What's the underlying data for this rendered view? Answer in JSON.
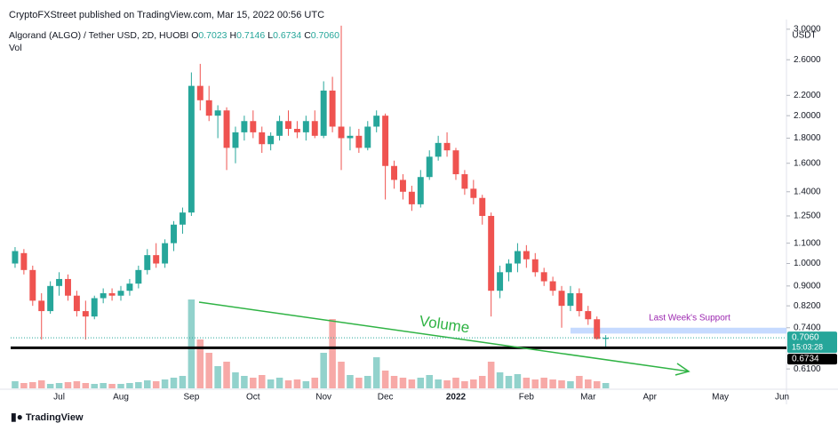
{
  "header": {
    "publish_note": "CryptoFXStreet published on TradingView.com, Mar 15, 2022 00:56 UTC",
    "symbol": "Algorand (ALGO) / Tether USD, 2D, HUOBI",
    "ohlc": [
      {
        "key": "O",
        "value": "0.7023"
      },
      {
        "key": "H",
        "value": "0.7146"
      },
      {
        "key": "L",
        "value": "0.6734"
      },
      {
        "key": "C",
        "value": "0.7060"
      }
    ],
    "vol_label": "Vol"
  },
  "footer": {
    "logo": "TradingView"
  },
  "chart_data": {
    "type": "candlestick",
    "log_scale": true,
    "currency": "USDT",
    "up_color": "#26a69a",
    "down_color": "#ef5350",
    "categories": [
      null,
      null,
      null,
      null,
      null,
      "Jul",
      null,
      null,
      null,
      null,
      null,
      null,
      "Aug",
      null,
      null,
      null,
      null,
      null,
      null,
      null,
      "Sep",
      null,
      null,
      null,
      null,
      null,
      null,
      "Oct",
      null,
      null,
      null,
      null,
      null,
      null,
      null,
      "Nov",
      null,
      null,
      null,
      null,
      null,
      null,
      "Dec",
      null,
      null,
      null,
      null,
      null,
      null,
      null,
      "2022",
      null,
      null,
      null,
      null,
      null,
      null,
      null,
      "Feb",
      null,
      null,
      null,
      null,
      null,
      null,
      "Mar",
      null,
      null,
      null,
      null,
      null,
      null,
      "Apr",
      null,
      null,
      null,
      null,
      null,
      null,
      null,
      "May",
      null,
      null,
      null,
      null,
      null,
      null,
      "Jun"
    ],
    "open": [
      1.0,
      1.05,
      0.97,
      0.84,
      0.8,
      0.9,
      0.93,
      0.86,
      0.8,
      0.78,
      0.85,
      0.87,
      0.86,
      0.88,
      0.91,
      0.97,
      1.04,
      1.0,
      1.1,
      1.2,
      1.27,
      2.3,
      2.15,
      2.0,
      2.05,
      1.72,
      1.85,
      1.95,
      1.85,
      1.75,
      1.82,
      1.95,
      1.88,
      1.85,
      1.95,
      1.82,
      2.25,
      1.9,
      1.8,
      1.82,
      1.72,
      1.9,
      2.0,
      1.58,
      1.48,
      1.4,
      1.32,
      1.5,
      1.65,
      1.76,
      1.7,
      1.52,
      1.42,
      1.36,
      1.25,
      0.88,
      0.96,
      1.0,
      1.06,
      1.02,
      0.96,
      0.92,
      0.88,
      0.82,
      0.87,
      0.8,
      0.77,
      0.7023,
      null,
      null,
      null,
      null,
      null,
      null,
      null,
      null,
      null,
      null,
      null,
      null,
      null,
      null,
      null,
      null,
      null,
      null,
      null,
      null
    ],
    "high": [
      1.08,
      1.07,
      0.99,
      0.87,
      0.92,
      0.96,
      0.95,
      0.88,
      0.84,
      0.86,
      0.89,
      0.89,
      0.9,
      0.93,
      0.99,
      1.07,
      1.1,
      1.12,
      1.22,
      1.3,
      2.45,
      2.55,
      2.3,
      2.1,
      2.08,
      1.9,
      2.0,
      2.05,
      1.9,
      1.85,
      2.0,
      2.05,
      1.95,
      2.0,
      2.05,
      2.35,
      2.4,
      3.05,
      1.9,
      1.88,
      1.95,
      2.05,
      2.02,
      1.62,
      1.52,
      1.44,
      1.55,
      1.7,
      1.82,
      1.85,
      1.72,
      1.55,
      1.48,
      1.38,
      1.27,
      0.99,
      1.02,
      1.1,
      1.09,
      1.05,
      0.98,
      0.94,
      0.9,
      0.9,
      0.89,
      0.82,
      0.78,
      0.7146,
      null,
      null,
      null,
      null,
      null,
      null,
      null,
      null,
      null,
      null,
      null,
      null,
      null,
      null,
      null,
      null,
      null,
      null,
      null,
      null
    ],
    "low": [
      0.98,
      0.95,
      0.82,
      0.7,
      0.79,
      0.86,
      0.84,
      0.78,
      0.7,
      0.77,
      0.83,
      0.84,
      0.84,
      0.86,
      0.89,
      0.95,
      0.98,
      0.98,
      1.06,
      1.15,
      1.25,
      2.05,
      1.95,
      1.8,
      1.55,
      1.6,
      1.78,
      1.8,
      1.68,
      1.7,
      1.78,
      1.82,
      1.8,
      1.78,
      1.8,
      1.8,
      1.85,
      1.55,
      1.7,
      1.68,
      1.7,
      1.85,
      1.35,
      1.42,
      1.35,
      1.28,
      1.3,
      1.48,
      1.62,
      1.65,
      1.48,
      1.38,
      1.32,
      1.2,
      0.78,
      0.85,
      0.92,
      0.96,
      0.98,
      0.94,
      0.9,
      0.86,
      0.74,
      0.8,
      0.78,
      0.75,
      0.7,
      0.6734,
      null,
      null,
      null,
      null,
      null,
      null,
      null,
      null,
      null,
      null,
      null,
      null,
      null,
      null,
      null,
      null,
      null,
      null,
      null,
      null
    ],
    "close": [
      1.06,
      0.97,
      0.84,
      0.8,
      0.9,
      0.93,
      0.86,
      0.8,
      0.78,
      0.85,
      0.87,
      0.86,
      0.88,
      0.91,
      0.97,
      1.04,
      1.0,
      1.1,
      1.2,
      1.27,
      2.3,
      2.15,
      2.0,
      2.05,
      1.72,
      1.85,
      1.95,
      1.85,
      1.75,
      1.82,
      1.95,
      1.88,
      1.85,
      1.95,
      1.82,
      2.25,
      1.9,
      1.8,
      1.82,
      1.72,
      1.9,
      2.0,
      1.58,
      1.48,
      1.4,
      1.32,
      1.5,
      1.65,
      1.76,
      1.7,
      1.52,
      1.42,
      1.36,
      1.25,
      0.88,
      0.96,
      1.0,
      1.06,
      1.02,
      0.96,
      0.92,
      0.88,
      0.82,
      0.87,
      0.8,
      0.77,
      0.7023,
      0.706,
      null,
      null,
      null,
      null,
      null,
      null,
      null,
      null,
      null,
      null,
      null,
      null,
      null,
      null,
      null,
      null,
      null,
      null,
      null,
      null
    ],
    "volume": [
      8,
      6,
      7,
      9,
      5,
      6,
      7,
      8,
      6,
      5,
      6,
      5,
      5,
      6,
      7,
      9,
      8,
      10,
      12,
      14,
      100,
      55,
      40,
      25,
      30,
      18,
      14,
      12,
      15,
      10,
      12,
      9,
      10,
      8,
      12,
      40,
      78,
      30,
      15,
      12,
      14,
      35,
      20,
      14,
      12,
      10,
      12,
      15,
      10,
      9,
      12,
      8,
      10,
      14,
      30,
      18,
      14,
      16,
      12,
      10,
      12,
      10,
      9,
      8,
      14,
      10,
      8,
      6,
      null,
      null,
      null,
      null,
      null,
      null,
      null,
      null,
      null,
      null,
      null,
      null,
      null,
      null,
      null,
      null,
      null,
      null,
      null,
      null
    ],
    "ylim": [
      0.55,
      3.1
    ],
    "yticks": [
      {
        "value": 0.61,
        "label": "0.6100"
      },
      {
        "value": 0.74,
        "label": "0.7400"
      },
      {
        "value": 0.82,
        "label": "0.8200"
      },
      {
        "value": 0.9,
        "label": "0.9000"
      },
      {
        "value": 1,
        "label": "1.0000"
      },
      {
        "value": 1.1,
        "label": "1.1000"
      },
      {
        "value": 1.25,
        "label": "1.2500"
      },
      {
        "value": 1.4,
        "label": "1.4000"
      },
      {
        "value": 1.6,
        "label": "1.6000"
      },
      {
        "value": 1.8,
        "label": "1.8000"
      },
      {
        "value": 2,
        "label": "2.0000"
      },
      {
        "value": 2.2,
        "label": "2.2000"
      },
      {
        "value": 2.6,
        "label": "2.6000"
      },
      {
        "value": 3,
        "label": "3.0000"
      }
    ],
    "last_price": {
      "value": 0.706,
      "label": "0.7060",
      "countdown": "15:03:28"
    },
    "support_line": {
      "value": 0.6734,
      "label": "0.6734"
    },
    "support_zone": {
      "label": "Last Week's Support",
      "range": [
        0.72,
        0.74
      ]
    },
    "annotation": "Volume"
  }
}
